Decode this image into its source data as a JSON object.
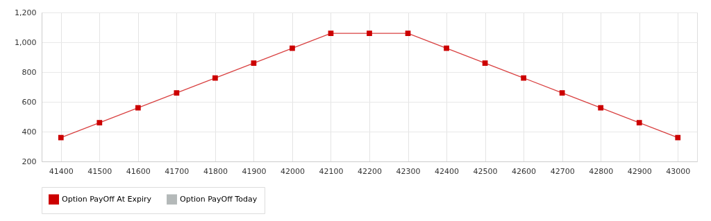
{
  "chart_data": {
    "type": "line",
    "categories": [
      "41400",
      "41500",
      "41600",
      "41700",
      "41800",
      "41900",
      "42000",
      "42100",
      "42200",
      "42300",
      "42400",
      "42500",
      "42600",
      "42700",
      "42800",
      "42900",
      "43000"
    ],
    "series": [
      {
        "name": "Option PayOff At Expiry",
        "color": "#cc0000",
        "values": [
          360,
          460,
          560,
          660,
          760,
          860,
          960,
          1060,
          1060,
          1060,
          960,
          860,
          760,
          660,
          560,
          460,
          360
        ]
      },
      {
        "name": "Option PayOff Today",
        "color": "#b4b9b9",
        "values": [
          null,
          null,
          null,
          null,
          null,
          null,
          null,
          null,
          null,
          null,
          null,
          null,
          null,
          null,
          null,
          null,
          null
        ]
      }
    ],
    "ylim": [
      200,
      1200
    ],
    "yticks": [
      200,
      400,
      600,
      800,
      {
        "value": 1000,
        "label": "1,000"
      },
      {
        "value": 1200,
        "label": "1,200"
      }
    ],
    "grid": true,
    "legend": "bottom",
    "marker": "square",
    "line_style": "solid"
  }
}
